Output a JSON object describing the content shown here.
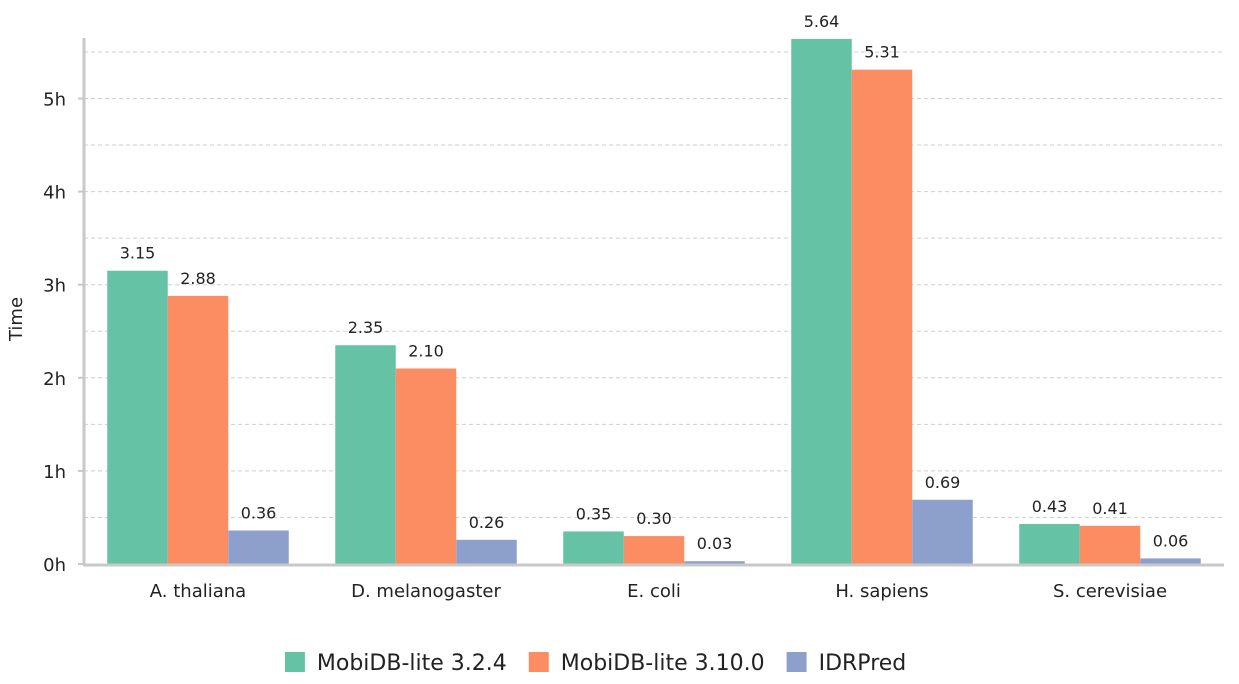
{
  "chart_data": {
    "type": "bar",
    "ylabel": "Time",
    "xlabel": "",
    "categories": [
      "A. thaliana",
      "D. melanogaster",
      "E. coli",
      "H. sapiens",
      "S. cerevisiae"
    ],
    "series": [
      {
        "name": "MobiDB-lite 3.2.4",
        "color": "#66c2a5",
        "values": [
          3.15,
          2.35,
          0.35,
          5.64,
          0.43
        ],
        "labels": [
          "3.15",
          "2.35",
          "0.35",
          "5.64",
          "0.43"
        ]
      },
      {
        "name": "MobiDB-lite 3.10.0",
        "color": "#fc8d62",
        "values": [
          2.88,
          2.1,
          0.3,
          5.31,
          0.41
        ],
        "labels": [
          "2.88",
          "2.10",
          "0.30",
          "5.31",
          "0.41"
        ]
      },
      {
        "name": "IDRPred",
        "color": "#8da0cb",
        "values": [
          0.36,
          0.26,
          0.03,
          0.69,
          0.06
        ],
        "labels": [
          "0.36",
          "0.26",
          "0.03",
          "0.69",
          "0.06"
        ]
      }
    ],
    "ylim": [
      0,
      5.65
    ],
    "yticks": [
      0,
      1,
      2,
      3,
      4,
      5
    ],
    "ytick_labels": [
      "0h",
      "1h",
      "2h",
      "3h",
      "4h",
      "5h"
    ],
    "minor_gridlines": [
      0.5,
      1.5,
      2.5,
      3.5,
      4.5,
      5.5
    ],
    "grid": true,
    "legend_position": "bottom-center"
  }
}
